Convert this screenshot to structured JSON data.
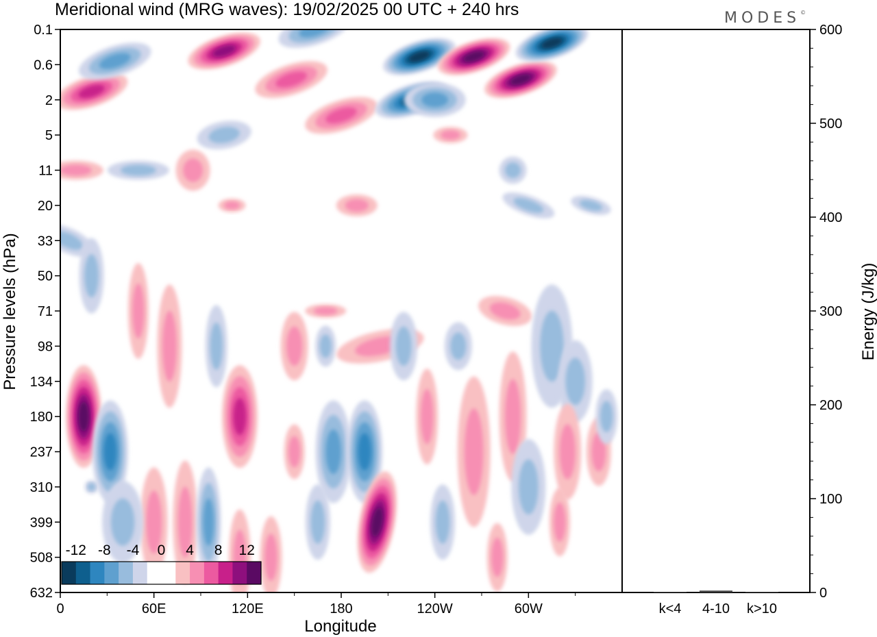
{
  "title": "Meridional wind (MRG waves):  19/02/2025  00 UTC  + 240 hrs",
  "brand": "MODES",
  "brand_mark": "©",
  "chart_data": [
    {
      "type": "heatmap",
      "variable": "Meridional wind",
      "xlabel": "Longitude",
      "ylabel": "Pressure levels (hPa)",
      "x_ticks": [
        "0",
        "60E",
        "120E",
        "180",
        "120W",
        "60W"
      ],
      "y_ticks": [
        "0.1",
        "0.6",
        "2",
        "5",
        "11",
        "20",
        "33",
        "50",
        "71",
        "98",
        "134",
        "180",
        "237",
        "310",
        "399",
        "508",
        "632"
      ],
      "y_scale": "pressure levels, top to bottom",
      "colorbar": {
        "tick_labels": [
          "-12",
          "-8",
          "-4",
          "0",
          "4",
          "8",
          "12"
        ],
        "colors": [
          "#0a3b5c",
          "#0e5f8e",
          "#2e86bf",
          "#5fa0cf",
          "#98bcdd",
          "#cfd5ea",
          "#ffffff",
          "#ffffff",
          "#f9c0c2",
          "#f78fb3",
          "#ec5aa0",
          "#c8208a",
          "#8e0f7d",
          "#5a0a63"
        ]
      },
      "features": [
        {
          "lon": 20,
          "p": "1.5",
          "sign": "positive",
          "peak": 6
        },
        {
          "lon": 35,
          "p": "0.5",
          "sign": "negative",
          "peak": -4
        },
        {
          "lon": 105,
          "p": "0.3",
          "sign": "positive",
          "peak": 8
        },
        {
          "lon": 148,
          "p": "1",
          "sign": "positive",
          "peak": 4
        },
        {
          "lon": 163,
          "p": "0.1",
          "sign": "negative",
          "peak": -4
        },
        {
          "lon": 180,
          "p": "3",
          "sign": "positive",
          "peak": 5
        },
        {
          "lon": 230,
          "p": "0.4",
          "sign": "negative",
          "peak": -10
        },
        {
          "lon": 225,
          "p": "2",
          "sign": "negative",
          "peak": -9
        },
        {
          "lon": 265,
          "p": "0.4",
          "sign": "positive",
          "peak": 12
        },
        {
          "lon": 295,
          "p": "1",
          "sign": "positive",
          "peak": 10
        },
        {
          "lon": 315,
          "p": "0.2",
          "sign": "negative",
          "peak": -10
        },
        {
          "lon": 15,
          "p": "180",
          "sign": "positive",
          "peak": 10
        },
        {
          "lon": 32,
          "p": "237",
          "sign": "negative",
          "peak": -7
        },
        {
          "lon": 115,
          "p": "180",
          "sign": "positive",
          "peak": 6
        },
        {
          "lon": 175,
          "p": "237",
          "sign": "negative",
          "peak": -5
        },
        {
          "lon": 195,
          "p": "237",
          "sign": "negative",
          "peak": -7
        },
        {
          "lon": 203,
          "p": "399",
          "sign": "positive",
          "peak": 12
        }
      ]
    },
    {
      "type": "bar",
      "ylabel": "Energy (J/kg)",
      "categories": [
        "k<4",
        "4-10",
        "k>10"
      ],
      "values": [
        0.5,
        2,
        0.5
      ],
      "ylim": [
        0,
        600
      ],
      "y_ticks": [
        "0",
        "100",
        "200",
        "300",
        "400",
        "500",
        "600"
      ]
    }
  ]
}
